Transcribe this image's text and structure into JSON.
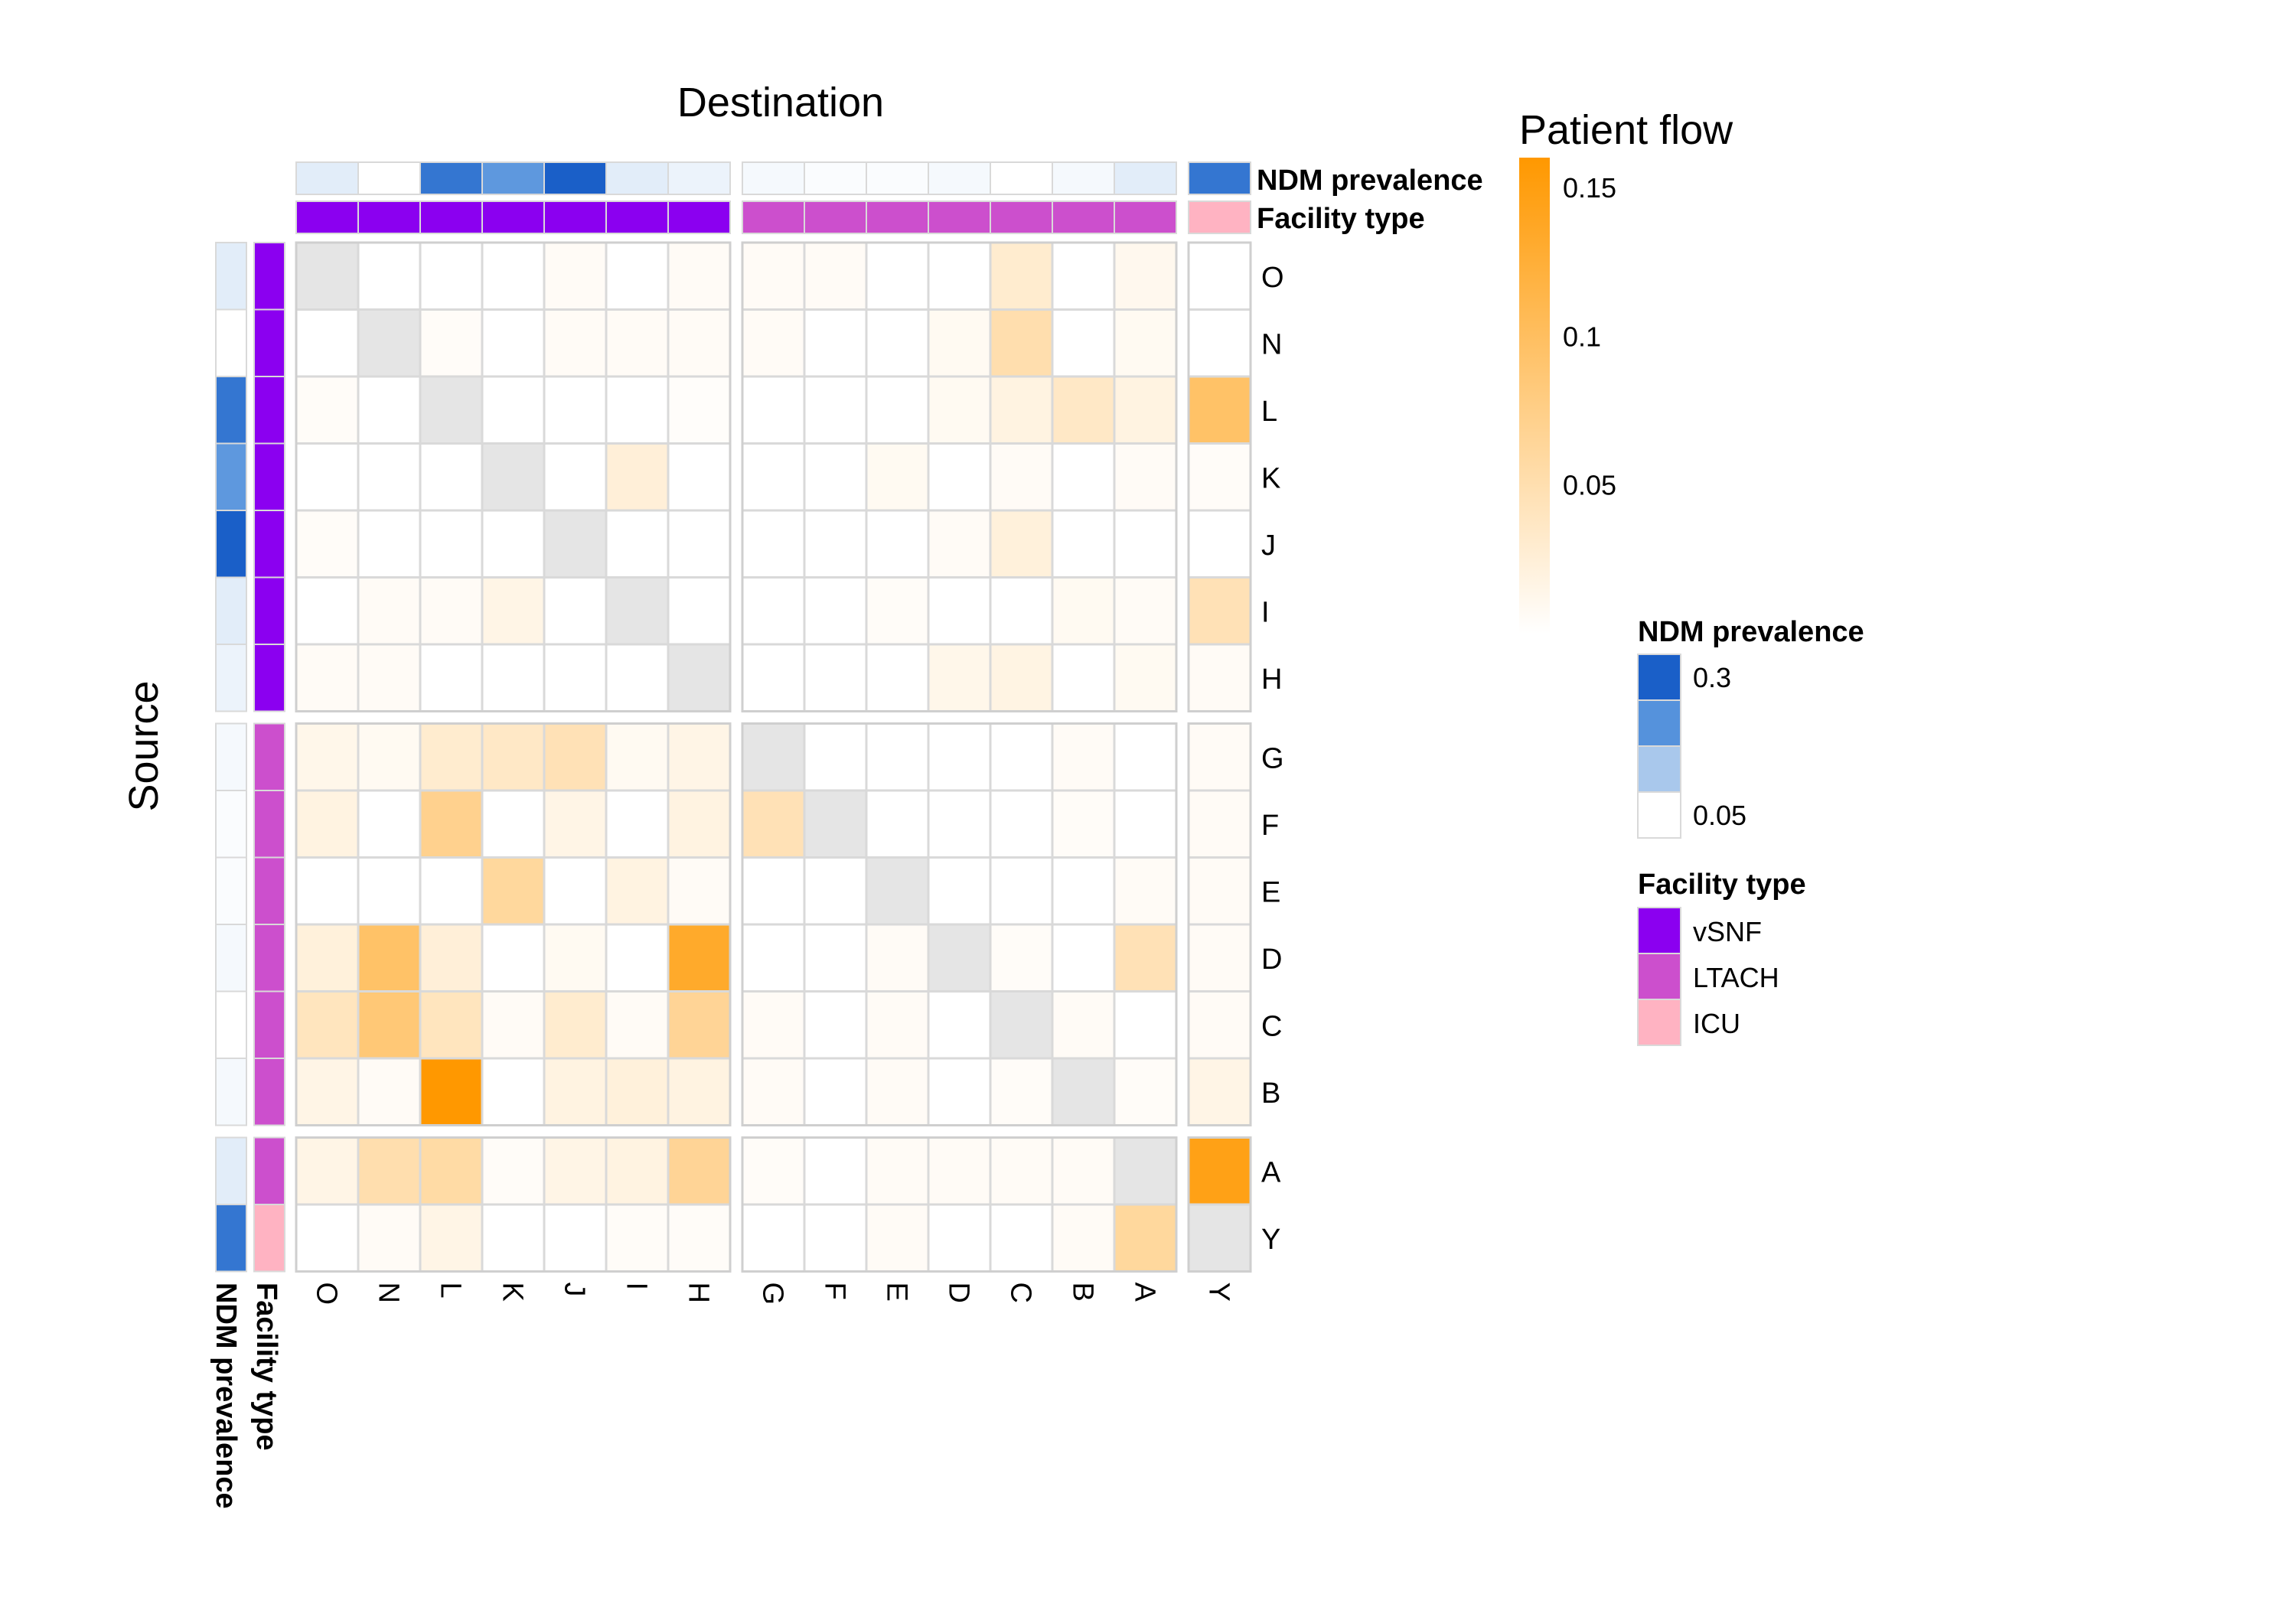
{
  "chart_data": {
    "type": "heatmap",
    "xlabel": "Destination",
    "ylabel": "Source",
    "rows": [
      "O",
      "N",
      "L",
      "K",
      "J",
      "I",
      "H",
      "G",
      "F",
      "E",
      "D",
      "C",
      "B",
      "A",
      "Y"
    ],
    "cols": [
      "O",
      "N",
      "L",
      "K",
      "J",
      "I",
      "H",
      "G",
      "F",
      "E",
      "D",
      "C",
      "B",
      "A",
      "Y"
    ],
    "row_splits": [
      7,
      13
    ],
    "col_splits": [
      7,
      14
    ],
    "values": [
      [
        null,
        0,
        0,
        0,
        0.004,
        0,
        0.004,
        0.004,
        0.004,
        0,
        0,
        0.025,
        0,
        0.008,
        0
      ],
      [
        0,
        null,
        0.003,
        0,
        0.004,
        0.004,
        0.004,
        0.004,
        0,
        0,
        0.006,
        0.045,
        0,
        0.006,
        0
      ],
      [
        0.003,
        0,
        null,
        0,
        0,
        0,
        0.002,
        0,
        0,
        0,
        0.006,
        0.015,
        0.03,
        0.015,
        0.09
      ],
      [
        0,
        0,
        0,
        null,
        0,
        0.02,
        0,
        0,
        0,
        0.006,
        0,
        0.004,
        0,
        0.004,
        0.003
      ],
      [
        0.003,
        0,
        0,
        0,
        null,
        0,
        0,
        0,
        0,
        0,
        0.004,
        0.018,
        0,
        0,
        0
      ],
      [
        0,
        0.004,
        0.004,
        0.012,
        0,
        null,
        0,
        0,
        0,
        0.003,
        0,
        0,
        0.006,
        0.004,
        0.04
      ],
      [
        0.004,
        0.004,
        0,
        0,
        0,
        0,
        null,
        0,
        0,
        0,
        0.01,
        0.014,
        0,
        0.006,
        0.004
      ],
      [
        0.01,
        0.006,
        0.025,
        0.03,
        0.04,
        0.006,
        0.012,
        null,
        0,
        0,
        0,
        0,
        0.004,
        0,
        0.004
      ],
      [
        0.015,
        0,
        0.065,
        0,
        0.012,
        0,
        0.015,
        0.04,
        null,
        0,
        0,
        0,
        0.003,
        0,
        0.004
      ],
      [
        0,
        0,
        0,
        0.055,
        0,
        0.015,
        0.004,
        0,
        0,
        null,
        0,
        0,
        0,
        0.004,
        0.004
      ],
      [
        0.018,
        0.09,
        0.02,
        0,
        0.006,
        0,
        0.13,
        0,
        0,
        0.004,
        null,
        0.003,
        0,
        0.04,
        0.004
      ],
      [
        0.035,
        0.08,
        0.035,
        0.004,
        0.025,
        0.004,
        0.06,
        0.004,
        0,
        0.004,
        0,
        null,
        0.004,
        0,
        0.004
      ],
      [
        0.012,
        0.004,
        0.16,
        0,
        0.015,
        0.018,
        0.015,
        0.004,
        0,
        0.004,
        0,
        0.003,
        null,
        0.003,
        0.012
      ],
      [
        0.012,
        0.045,
        0.05,
        0.003,
        0.012,
        0.015,
        0.06,
        0.003,
        0,
        0.004,
        0.004,
        0.004,
        0.004,
        null,
        0.145
      ],
      [
        0,
        0.004,
        0.012,
        0,
        0,
        0.003,
        0.003,
        0,
        0,
        0.004,
        0,
        0,
        0.004,
        0.055,
        null
      ]
    ],
    "facility_type": {
      "O": "vSNF",
      "N": "vSNF",
      "L": "vSNF",
      "K": "vSNF",
      "J": "vSNF",
      "I": "vSNF",
      "H": "vSNF",
      "G": "LTACH",
      "F": "LTACH",
      "E": "LTACH",
      "D": "LTACH",
      "C": "LTACH",
      "B": "LTACH",
      "A": "LTACH",
      "Y": "ICU"
    },
    "ndm_prevalence": {
      "O": 0.08,
      "N": 0.05,
      "L": 0.28,
      "K": 0.22,
      "J": 0.32,
      "I": 0.08,
      "H": 0.07,
      "G": 0.06,
      "F": 0.055,
      "E": 0.055,
      "D": 0.06,
      "C": 0.05,
      "B": 0.06,
      "A": 0.08,
      "Y": 0.28
    },
    "legend": {
      "patient_flow": {
        "title": "Patient flow",
        "ticks": [
          "0.15",
          "0.1",
          "0.05"
        ],
        "range": [
          0,
          0.16
        ],
        "low_color": "#ffffff",
        "high_color": "#ff9800"
      },
      "ndm": {
        "title": "NDM prevalence",
        "ticks": [
          "0.3",
          "0.05"
        ],
        "colors": [
          "#1a5fc8",
          "#5592dc",
          "#a9c8ec",
          "#ffffff"
        ]
      },
      "facility": {
        "title": "Facility type",
        "items": [
          {
            "label": "vSNF",
            "color": "#8b00f0"
          },
          {
            "label": "LTACH",
            "color": "#cc4fcd"
          },
          {
            "label": "ICU",
            "color": "#ffb3c2"
          }
        ]
      }
    },
    "annotation_labels": {
      "ndm": "NDM prevalence",
      "facility": "Facility type"
    },
    "diagonal_color": "#e5e5e5"
  }
}
